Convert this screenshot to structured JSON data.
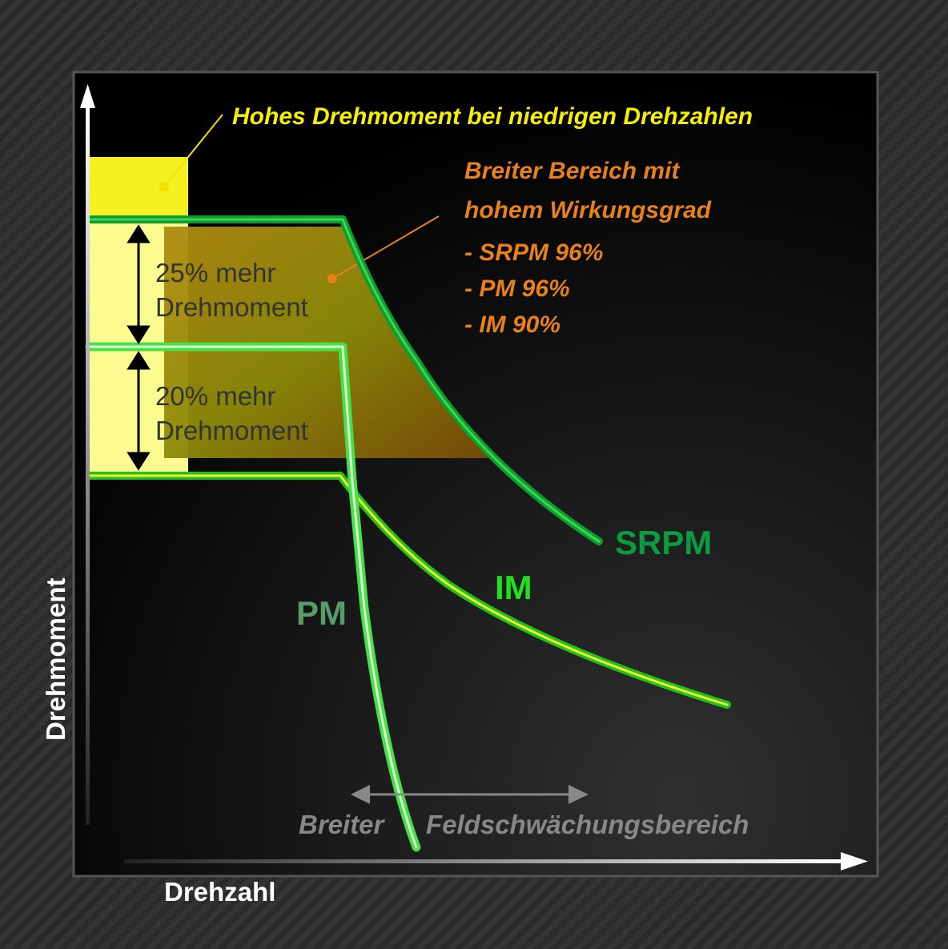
{
  "annotations": {
    "low_speed": "Hohes Drehmoment bei niedrigen Drehzahlen",
    "efficiency": [
      "Breiter Bereich mit",
      "hohem Wirkungsgrad",
      "- SRPM 96%",
      "- PM 96%",
      "- IM 90%"
    ],
    "torque_25": [
      "25% mehr",
      "Drehmoment"
    ],
    "torque_20": [
      "20% mehr",
      "Drehmoment"
    ],
    "field_weakening": [
      "Breiter",
      "Feldschwächungsbereich"
    ]
  },
  "curves": [
    {
      "label": "SRPM"
    },
    {
      "label": "IM"
    },
    {
      "label": "PM"
    }
  ],
  "axes": {
    "x_label": "Drehzahl",
    "y_label": "Drehmoment"
  }
}
